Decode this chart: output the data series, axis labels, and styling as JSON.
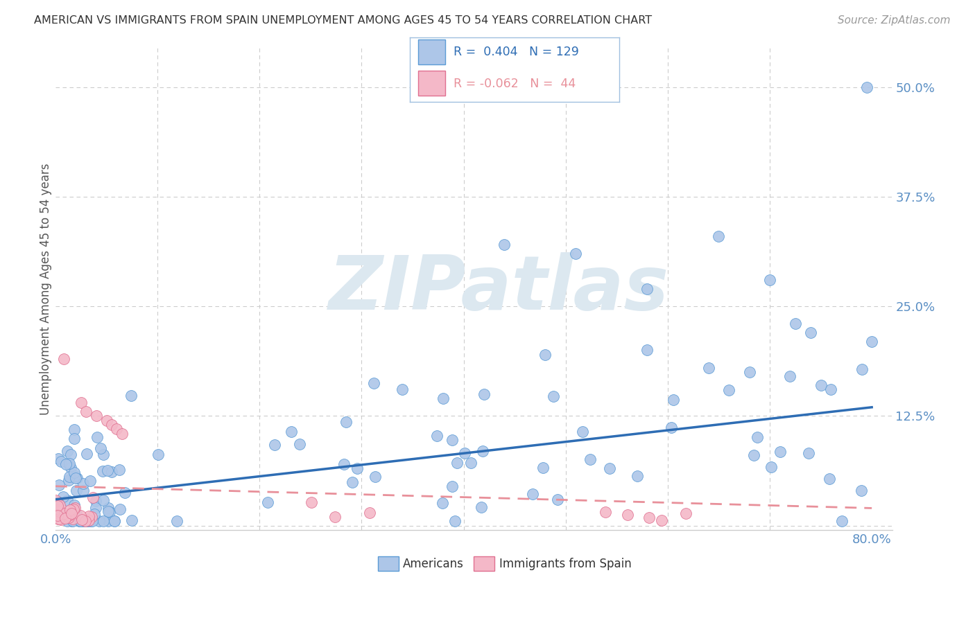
{
  "title": "AMERICAN VS IMMIGRANTS FROM SPAIN UNEMPLOYMENT AMONG AGES 45 TO 54 YEARS CORRELATION CHART",
  "source": "Source: ZipAtlas.com",
  "ylabel": "Unemployment Among Ages 45 to 54 years",
  "xlim": [
    0.0,
    0.82
  ],
  "ylim": [
    -0.005,
    0.545
  ],
  "yticks": [
    0.0,
    0.125,
    0.25,
    0.375,
    0.5
  ],
  "ytick_labels": [
    "",
    "12.5%",
    "25.0%",
    "37.5%",
    "50.0%"
  ],
  "xtick_labels": [
    "0.0%",
    "",
    "",
    "",
    "",
    "",
    "",
    "",
    "80.0%"
  ],
  "xtick_vals": [
    0.0,
    0.1,
    0.2,
    0.3,
    0.4,
    0.5,
    0.6,
    0.7,
    0.8
  ],
  "legend_r_american": "0.404",
  "legend_n_american": "129",
  "legend_r_spain": "-0.062",
  "legend_n_spain": "44",
  "american_fill": "#adc6e8",
  "american_edge": "#5b9bd5",
  "spain_fill": "#f4b8c8",
  "spain_edge": "#e07090",
  "trendline_american_color": "#2e6db4",
  "trendline_spain_color": "#e8909a",
  "watermark": "ZIPatlas",
  "watermark_color": "#dce8f0",
  "grid_color": "#cccccc",
  "title_color": "#333333",
  "source_color": "#999999",
  "tick_color": "#5b8fc4",
  "legend_border": "#a0c0e0"
}
